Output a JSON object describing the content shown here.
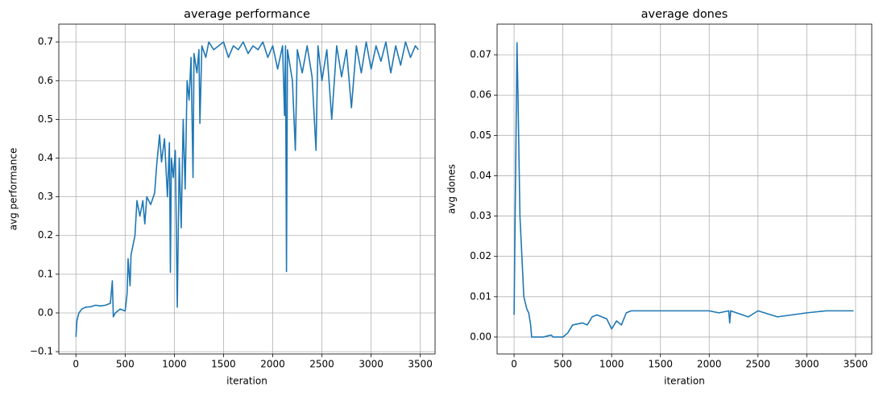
{
  "chart_data": [
    {
      "type": "line",
      "title": "average performance",
      "xlabel": "iteration",
      "ylabel": "avg performance",
      "color": "#1f77b4",
      "grid": true,
      "x": [
        0,
        10,
        30,
        60,
        100,
        150,
        200,
        250,
        300,
        350,
        370,
        380,
        400,
        450,
        500,
        520,
        530,
        550,
        560,
        600,
        620,
        650,
        680,
        700,
        720,
        760,
        800,
        820,
        850,
        870,
        900,
        930,
        950,
        960,
        970,
        990,
        1010,
        1030,
        1050,
        1070,
        1090,
        1110,
        1130,
        1150,
        1170,
        1190,
        1200,
        1230,
        1250,
        1260,
        1280,
        1320,
        1350,
        1400,
        1450,
        1500,
        1550,
        1600,
        1650,
        1700,
        1750,
        1800,
        1850,
        1900,
        1950,
        2000,
        2050,
        2100,
        2120,
        2130,
        2140,
        2150,
        2200,
        2230,
        2250,
        2300,
        2350,
        2400,
        2440,
        2460,
        2500,
        2550,
        2600,
        2650,
        2700,
        2750,
        2800,
        2850,
        2900,
        2950,
        3000,
        3050,
        3100,
        3150,
        3200,
        3250,
        3300,
        3350,
        3400,
        3450,
        3480
      ],
      "values": [
        -0.062,
        -0.02,
        0.0,
        0.01,
        0.015,
        0.016,
        0.02,
        0.018,
        0.02,
        0.025,
        0.083,
        -0.01,
        0.0,
        0.01,
        0.005,
        0.05,
        0.14,
        0.07,
        0.15,
        0.2,
        0.29,
        0.25,
        0.29,
        0.23,
        0.3,
        0.28,
        0.31,
        0.38,
        0.46,
        0.39,
        0.45,
        0.3,
        0.44,
        0.105,
        0.4,
        0.35,
        0.42,
        0.015,
        0.4,
        0.22,
        0.5,
        0.32,
        0.6,
        0.55,
        0.66,
        0.35,
        0.67,
        0.62,
        0.68,
        0.49,
        0.69,
        0.66,
        0.7,
        0.68,
        0.69,
        0.7,
        0.66,
        0.69,
        0.68,
        0.7,
        0.67,
        0.69,
        0.68,
        0.7,
        0.66,
        0.69,
        0.63,
        0.69,
        0.51,
        0.69,
        0.107,
        0.68,
        0.6,
        0.42,
        0.68,
        0.62,
        0.69,
        0.61,
        0.42,
        0.69,
        0.6,
        0.68,
        0.5,
        0.69,
        0.61,
        0.68,
        0.53,
        0.69,
        0.62,
        0.7,
        0.63,
        0.69,
        0.65,
        0.7,
        0.62,
        0.69,
        0.64,
        0.7,
        0.66,
        0.69,
        0.68
      ],
      "xlim": [
        -174,
        3650
      ],
      "xticks": [
        0,
        500,
        1000,
        1500,
        2000,
        2500,
        3000,
        3500
      ],
      "ylim": [
        -0.106,
        0.746
      ],
      "yticks": [
        {
          "value": -0.1,
          "label": "−0.1"
        },
        {
          "value": 0,
          "label": "0.0"
        },
        0.1,
        0.2,
        0.3,
        0.4,
        0.5,
        0.6,
        0.7
      ]
    },
    {
      "type": "line",
      "title": "average dones",
      "xlabel": "iteration",
      "ylabel": "avg dones",
      "color": "#1f77b4",
      "grid": true,
      "x": [
        0,
        20,
        30,
        40,
        60,
        80,
        100,
        130,
        150,
        170,
        180,
        300,
        380,
        400,
        500,
        550,
        600,
        700,
        750,
        800,
        850,
        900,
        950,
        1000,
        1050,
        1100,
        1150,
        1200,
        1300,
        1500,
        1800,
        2000,
        2100,
        2200,
        2210,
        2220,
        2400,
        2500,
        2700,
        3000,
        3200,
        3480
      ],
      "values": [
        0.0055,
        0.05,
        0.073,
        0.06,
        0.03,
        0.02,
        0.01,
        0.007,
        0.006,
        0.003,
        0.0,
        0.0,
        0.0005,
        0.0,
        0.0,
        0.001,
        0.003,
        0.0035,
        0.003,
        0.005,
        0.0055,
        0.005,
        0.0045,
        0.002,
        0.004,
        0.003,
        0.006,
        0.0065,
        0.0065,
        0.0065,
        0.0065,
        0.0065,
        0.006,
        0.0065,
        0.0035,
        0.0065,
        0.005,
        0.0065,
        0.005,
        0.006,
        0.0065,
        0.0065
      ],
      "xlim": [
        -174,
        3666
      ],
      "xticks": [
        0,
        500,
        1000,
        1500,
        2000,
        2500,
        3000,
        3500
      ],
      "ylim": [
        -0.0042,
        0.0776
      ],
      "yticks": [
        {
          "value": 0,
          "label": "0.00"
        },
        {
          "value": 0.01,
          "label": "0.01"
        },
        {
          "value": 0.02,
          "label": "0.02"
        },
        {
          "value": 0.03,
          "label": "0.03"
        },
        {
          "value": 0.04,
          "label": "0.04"
        },
        {
          "value": 0.05,
          "label": "0.05"
        },
        {
          "value": 0.06,
          "label": "0.06"
        },
        {
          "value": 0.07,
          "label": "0.07"
        }
      ]
    }
  ]
}
